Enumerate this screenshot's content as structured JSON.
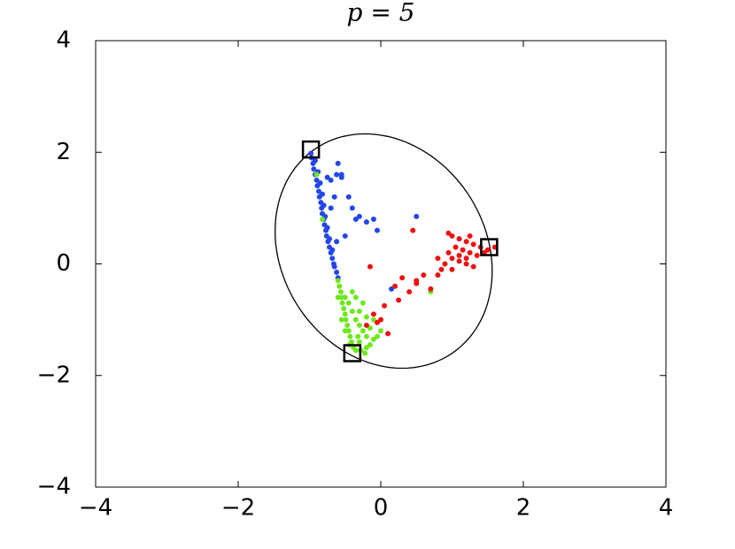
{
  "chart_data": {
    "type": "scatter",
    "title": "p = 5",
    "xlim": [
      -4,
      4
    ],
    "ylim": [
      -4,
      4
    ],
    "xticks": [
      {
        "value": -4,
        "label": "−4"
      },
      {
        "value": -2,
        "label": "−2"
      },
      0,
      2,
      4
    ],
    "yticks": [
      {
        "value": -4,
        "label": "−4"
      },
      {
        "value": -2,
        "label": "−2"
      },
      0,
      2,
      4
    ],
    "ellipse": {
      "center": [
        0.04,
        0.23
      ],
      "u": [
        -0.26,
        2.1
      ],
      "v": [
        1.5,
        0
      ],
      "color": "#000000"
    },
    "series": [
      {
        "color": "#2347e8",
        "marker": "dot",
        "x": [
          -0.98,
          -0.97,
          -0.95,
          -0.94,
          -0.92,
          -0.9,
          -0.89,
          -0.87,
          -0.86,
          -0.84,
          -0.83,
          -0.82,
          -0.8,
          -0.79,
          -0.77,
          -0.76,
          -0.74,
          -0.72,
          -0.7,
          -0.68,
          -0.66,
          -0.92,
          -0.88,
          -0.85,
          -0.82,
          -0.8,
          -0.78,
          -0.75,
          -0.72,
          -0.68,
          -0.65,
          -0.62,
          -0.6,
          -0.75,
          -0.7,
          -0.65,
          -0.62,
          -0.55,
          -0.45,
          -0.4,
          -0.35,
          -0.3,
          -0.2,
          -0.1,
          -0.05,
          0.5,
          0.15,
          -0.6,
          -0.55,
          -0.7,
          -0.62,
          -0.5
        ],
        "values": [
          1.98,
          1.9,
          1.8,
          1.7,
          1.6,
          1.5,
          1.4,
          1.3,
          1.2,
          1.1,
          1.0,
          0.9,
          0.8,
          0.7,
          0.6,
          0.5,
          0.4,
          0.3,
          0.2,
          0.1,
          0.0,
          1.85,
          1.65,
          1.45,
          1.25,
          1.05,
          0.85,
          0.65,
          0.45,
          0.25,
          -0.05,
          -0.15,
          -0.25,
          1.55,
          1.5,
          1.2,
          1.6,
          1.55,
          1.2,
          1.0,
          0.8,
          0.85,
          0.75,
          0.8,
          0.6,
          0.85,
          -0.45,
          1.8,
          1.6,
          1.0,
          0.4,
          0.5
        ]
      },
      {
        "color": "#6fe81c",
        "marker": "dot",
        "x": [
          -0.9,
          -0.82,
          -0.6,
          -0.58,
          -0.56,
          -0.55,
          -0.54,
          -0.52,
          -0.5,
          -0.49,
          -0.47,
          -0.45,
          -0.43,
          -0.41,
          -0.38,
          -0.35,
          -0.5,
          -0.45,
          -0.4,
          -0.35,
          -0.3,
          -0.25,
          -0.2,
          -0.3,
          -0.2,
          -0.15,
          -0.1,
          -0.05,
          0.0,
          -0.4,
          -0.35,
          -0.25,
          -0.2,
          -0.1,
          -0.3,
          -0.15,
          -0.28,
          -0.22,
          0.7,
          -0.44,
          -0.32,
          -0.5,
          -0.55,
          -0.6
        ],
        "values": [
          1.6,
          0.8,
          -0.3,
          -0.4,
          -0.5,
          -0.6,
          -0.7,
          -0.8,
          -0.9,
          -1.0,
          -1.1,
          -1.2,
          -1.3,
          -1.4,
          -1.5,
          -1.55,
          -0.6,
          -0.7,
          -0.85,
          -1.0,
          -1.1,
          -1.2,
          -1.3,
          -1.4,
          -1.5,
          -1.45,
          -1.35,
          -1.3,
          -1.2,
          -0.5,
          -0.6,
          -0.7,
          -0.95,
          -1.0,
          -0.85,
          -1.15,
          -1.55,
          -1.6,
          -0.5,
          -1.45,
          -1.3,
          -1.2,
          -1.0,
          -0.6
        ]
      },
      {
        "color": "#f01010",
        "marker": "dot",
        "x": [
          1.0,
          1.1,
          1.2,
          1.3,
          1.4,
          1.5,
          1.05,
          1.15,
          1.25,
          1.35,
          1.45,
          1.0,
          1.1,
          1.2,
          1.3,
          1.1,
          1.2,
          0.95,
          0.9,
          0.85,
          0.8,
          0.6,
          0.5,
          0.3,
          0.4,
          0.2,
          0.25,
          0.05,
          0.0,
          -0.1,
          -0.05,
          -0.2,
          0.1,
          0.5,
          0.7,
          1.0,
          0.8,
          0.45,
          0.95,
          1.25,
          -0.15,
          1.6
        ],
        "values": [
          0.5,
          0.45,
          0.4,
          0.35,
          0.3,
          0.25,
          0.3,
          0.25,
          0.2,
          0.15,
          0.2,
          0.1,
          0.05,
          0.0,
          -0.05,
          0.15,
          0.1,
          0.2,
          0.0,
          -0.1,
          -0.2,
          -0.2,
          -0.35,
          -0.25,
          -0.5,
          -0.4,
          -0.65,
          -0.75,
          -1.0,
          -0.9,
          -1.05,
          -1.1,
          -1.25,
          -0.3,
          -0.45,
          -0.1,
          0.1,
          0.6,
          0.55,
          0.5,
          -0.05,
          0.3
        ]
      },
      {
        "color": "#000000",
        "marker": "square",
        "x": [
          -0.98,
          1.52,
          -0.4
        ],
        "values": [
          2.05,
          0.3,
          -1.6
        ]
      }
    ]
  }
}
